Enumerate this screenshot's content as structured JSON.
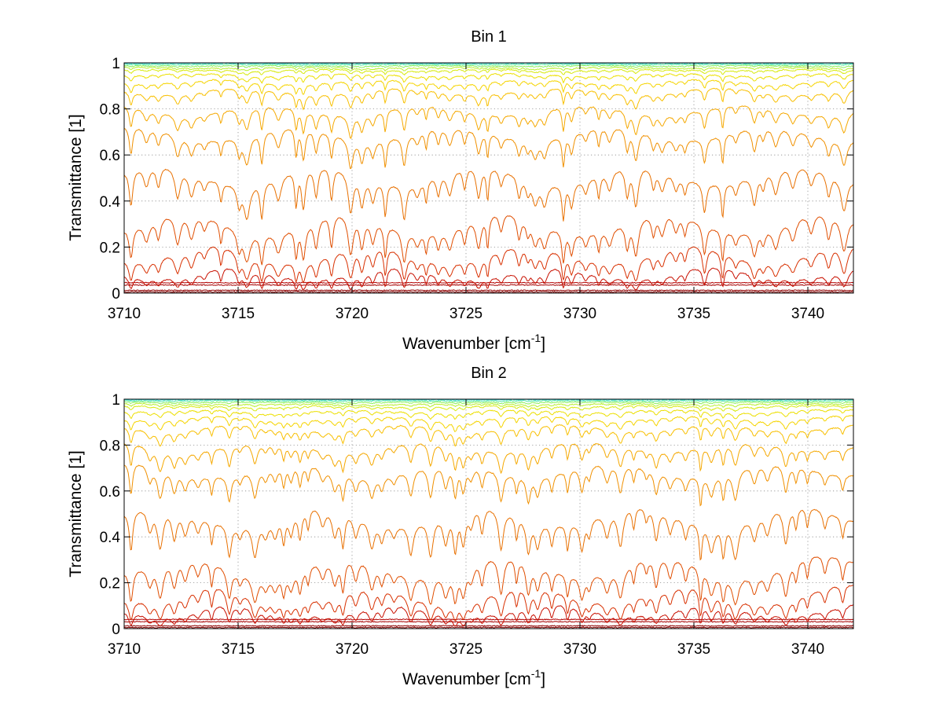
{
  "chart_data": [
    {
      "type": "line",
      "title": "Bin 1",
      "xlabel": "Wavenumber [cm",
      "xlabel_sup": "-1",
      "xlabel_close": "]",
      "ylabel": "Transmittance [1]",
      "xlim": [
        3710,
        3742
      ],
      "ylim": [
        0,
        1
      ],
      "xticks": [
        3710,
        3715,
        3720,
        3725,
        3730,
        3735,
        3740
      ],
      "xtick_labels": [
        "3710",
        "3715",
        "3720",
        "3725",
        "3730",
        "3735",
        "3740"
      ],
      "yticks": [
        0,
        0.2,
        0.4,
        0.6,
        0.8,
        1
      ],
      "ytick_labels": [
        "0",
        "0.2",
        "0.4",
        "0.6",
        "0.8",
        "1"
      ],
      "grid": true,
      "colormap": "jet (red = most absorbing, cyan = least absorbing)",
      "series_baselines": [
        0.005,
        0.012,
        0.035,
        0.045,
        0.09,
        0.175,
        0.31,
        0.52,
        0.7,
        0.8,
        0.88,
        0.92,
        0.95,
        0.97,
        0.98,
        0.988,
        0.994,
        0.998
      ],
      "series_colors": [
        "#7f0000",
        "#8f0000",
        "#a50000",
        "#b20000",
        "#c81000",
        "#d83000",
        "#e04e00",
        "#e87000",
        "#f09000",
        "#f5a800",
        "#f8bf00",
        "#f5d400",
        "#ecdf00",
        "#d8ea10",
        "#b8ef30",
        "#8ef060",
        "#60e8a8",
        "#40d8d8"
      ]
    },
    {
      "type": "line",
      "title": "Bin 2",
      "xlabel": "Wavenumber [cm",
      "xlabel_sup": "-1",
      "xlabel_close": "]",
      "ylabel": "Transmittance [1]",
      "xlim": [
        3710,
        3742
      ],
      "ylim": [
        0,
        1
      ],
      "xticks": [
        3710,
        3715,
        3720,
        3725,
        3730,
        3735,
        3740
      ],
      "xtick_labels": [
        "3710",
        "3715",
        "3720",
        "3725",
        "3730",
        "3735",
        "3740"
      ],
      "yticks": [
        0,
        0.2,
        0.4,
        0.6,
        0.8,
        1
      ],
      "ytick_labels": [
        "0",
        "0.2",
        "0.4",
        "0.6",
        "0.8",
        "1"
      ],
      "grid": true,
      "colormap": "jet (red = most absorbing, cyan = least absorbing)",
      "series_baselines": [
        0.005,
        0.012,
        0.03,
        0.04,
        0.085,
        0.155,
        0.28,
        0.5,
        0.7,
        0.8,
        0.88,
        0.92,
        0.95,
        0.97,
        0.98,
        0.988,
        0.994,
        0.998
      ],
      "series_colors": [
        "#7f0000",
        "#8f0000",
        "#a50000",
        "#b20000",
        "#c81000",
        "#d83000",
        "#e04e00",
        "#e87000",
        "#f09000",
        "#f5a800",
        "#f8bf00",
        "#f5d400",
        "#ecdf00",
        "#d8ea10",
        "#b8ef30",
        "#8ef060",
        "#60e8a8",
        "#40d8d8"
      ]
    }
  ]
}
